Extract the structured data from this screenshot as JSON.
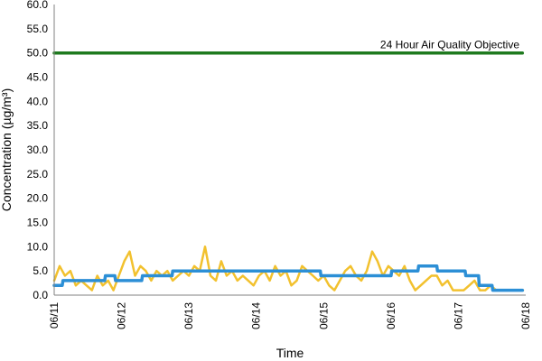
{
  "chart_data": {
    "type": "line",
    "title": "",
    "xlabel": "Time",
    "ylabel": "Concentration (µg/m³)",
    "ylim": [
      0,
      60
    ],
    "y_ticks": [
      "0.0",
      "5.0",
      "10.0",
      "15.0",
      "20.0",
      "25.0",
      "30.0",
      "35.0",
      "40.0",
      "45.0",
      "50.0",
      "55.0",
      "60.0"
    ],
    "x_ticks": [
      "06/11",
      "06/12",
      "06/13",
      "06/14",
      "06/15",
      "06/16",
      "06/17",
      "06/18"
    ],
    "xlim_days": [
      0,
      7
    ],
    "grid": false,
    "legend": "none",
    "annotations": [
      {
        "text": "24 Hour Air Quality Objective",
        "y": 50
      }
    ],
    "series": [
      {
        "color": "#f2c12e",
        "x": [
          0,
          0.08,
          0.16,
          0.24,
          0.32,
          0.4,
          0.48,
          0.56,
          0.64,
          0.72,
          0.8,
          0.88,
          0.96,
          1.04,
          1.12,
          1.2,
          1.28,
          1.36,
          1.44,
          1.52,
          1.6,
          1.68,
          1.76,
          1.84,
          1.92,
          2.0,
          2.08,
          2.16,
          2.24,
          2.32,
          2.4,
          2.48,
          2.56,
          2.64,
          2.72,
          2.8,
          2.88,
          2.96,
          3.04,
          3.12,
          3.2,
          3.28,
          3.36,
          3.44,
          3.52,
          3.6,
          3.68,
          3.76,
          3.84,
          3.92,
          4.0,
          4.08,
          4.16,
          4.24,
          4.32,
          4.4,
          4.48,
          4.56,
          4.64,
          4.72,
          4.8,
          4.88,
          4.96,
          5.04,
          5.12,
          5.2,
          5.28,
          5.36,
          5.44,
          5.52,
          5.6,
          5.68,
          5.76,
          5.84,
          5.92,
          6.0,
          6.08,
          6.16,
          6.24,
          6.32,
          6.4,
          6.48,
          6.56,
          6.64,
          6.72,
          6.8,
          6.88,
          6.96
        ],
        "values": [
          3,
          6,
          4,
          5,
          2,
          3,
          2,
          1,
          4,
          2,
          3,
          1,
          4,
          7,
          9,
          4,
          6,
          5,
          3,
          5,
          4,
          5,
          3,
          4,
          5,
          4,
          6,
          5,
          10,
          4,
          3,
          7,
          4,
          5,
          3,
          4,
          3,
          2,
          4,
          5,
          3,
          6,
          4,
          5,
          2,
          3,
          6,
          5,
          4,
          3,
          4,
          2,
          1,
          3,
          5,
          6,
          4,
          3,
          5,
          9,
          7,
          4,
          6,
          5,
          4,
          6,
          3,
          1,
          2,
          3,
          4,
          4,
          2,
          3,
          1,
          1,
          1,
          2,
          3,
          1,
          1,
          2,
          1,
          1,
          1,
          1,
          1,
          1
        ]
      },
      {
        "color": "#2c8fd6",
        "x": [
          0,
          0.12,
          0.13,
          0.5,
          0.51,
          0.75,
          0.76,
          0.9,
          0.91,
          1.3,
          1.31,
          1.75,
          1.76,
          3.95,
          3.96,
          5.0,
          5.01,
          5.2,
          5.21,
          5.4,
          5.41,
          5.68,
          5.69,
          6.1,
          6.11,
          6.3,
          6.31,
          6.5,
          6.51,
          6.95
        ],
        "values": [
          2,
          2,
          3,
          3,
          3,
          3,
          4,
          4,
          3,
          3,
          4,
          4,
          5,
          5,
          4,
          4,
          5,
          5,
          5,
          5,
          6,
          6,
          5,
          5,
          4,
          4,
          2,
          2,
          1,
          1
        ]
      },
      {
        "color": "#1f7a1f",
        "x": [
          0,
          6.95
        ],
        "values": [
          50,
          50
        ]
      }
    ]
  }
}
